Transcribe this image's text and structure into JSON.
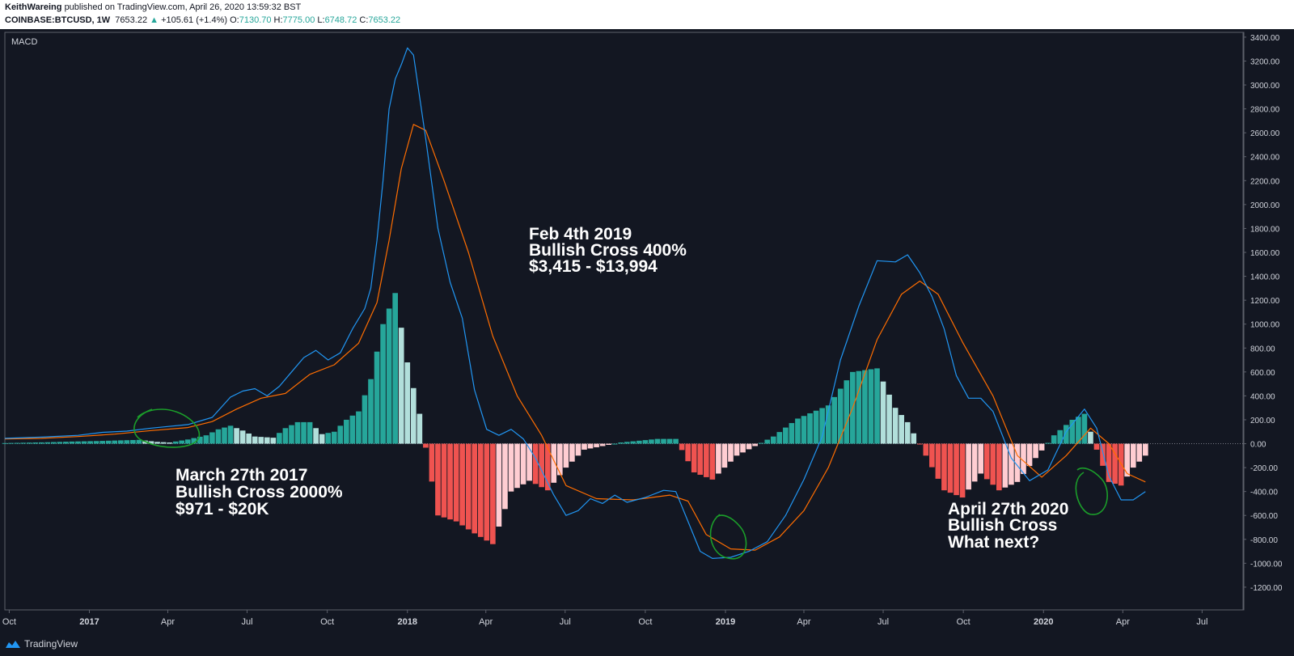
{
  "header": {
    "author": "KeithWareing",
    "published": "published on TradingView.com, April 26, 2020 13:59:32 BST",
    "symbol": "COINBASE:BTCUSD, 1W",
    "last": "7653.22",
    "change_arrow": "▲",
    "change": "+105.61 (+1.4%)",
    "o_label": "O:",
    "o_value": "7130.70",
    "h_label": "H:",
    "h_value": "7775.00",
    "l_label": "L:",
    "l_value": "6748.72",
    "c_label": "C:",
    "c_value": "7653.22"
  },
  "footer": {
    "brand": "TradingView",
    "logo_icon": "tradingview-logo-icon"
  },
  "colors": {
    "background": "#131722",
    "macd_line": "#2196f3",
    "signal_line": "#ff6d00",
    "hist_pos_strong": "#26a69a",
    "hist_pos_weak": "#b2dfdb",
    "hist_neg_strong": "#ef5350",
    "hist_neg_weak": "#ffcdd2",
    "annotation_text": "#ffffff",
    "circle_marks": "#1b9e2a"
  },
  "chart_data": {
    "type": "line",
    "indicator_label": "MACD",
    "y_ticks": [
      3400,
      3200,
      3000,
      2800,
      2600,
      2400,
      2200,
      2000,
      1800,
      1600,
      1400,
      1200,
      1000,
      800,
      600,
      400,
      200,
      0,
      -200,
      -400,
      -600,
      -800,
      -1000,
      -1200
    ],
    "y_tick_labels": [
      "3400.00",
      "3200.00",
      "3000.00",
      "2800.00",
      "2600.00",
      "2400.00",
      "2200.00",
      "2000.00",
      "1800.00",
      "1600.00",
      "1400.00",
      "1200.00",
      "1000.00",
      "800.00",
      "600.00",
      "400.00",
      "200.00",
      "0.00",
      "-200.00",
      "-400.00",
      "-600.00",
      "-800.00",
      "-1000.00",
      "-1200.00"
    ],
    "ylim": [
      -1390,
      3440
    ],
    "x_axis": {
      "start": "2016-09-26",
      "end": "2020-08-17",
      "ticks": [
        {
          "date": "2016-10-01",
          "label": "Oct",
          "bold": false
        },
        {
          "date": "2017-01-01",
          "label": "2017",
          "bold": true
        },
        {
          "date": "2017-04-01",
          "label": "Apr",
          "bold": false
        },
        {
          "date": "2017-07-01",
          "label": "Jul",
          "bold": false
        },
        {
          "date": "2017-10-01",
          "label": "Oct",
          "bold": false
        },
        {
          "date": "2018-01-01",
          "label": "2018",
          "bold": true
        },
        {
          "date": "2018-04-01",
          "label": "Apr",
          "bold": false
        },
        {
          "date": "2018-07-01",
          "label": "Jul",
          "bold": false
        },
        {
          "date": "2018-10-01",
          "label": "Oct",
          "bold": false
        },
        {
          "date": "2019-01-01",
          "label": "2019",
          "bold": true
        },
        {
          "date": "2019-04-01",
          "label": "Apr",
          "bold": false
        },
        {
          "date": "2019-07-01",
          "label": "Jul",
          "bold": false
        },
        {
          "date": "2019-10-01",
          "label": "Oct",
          "bold": false
        },
        {
          "date": "2020-01-01",
          "label": "2020",
          "bold": true
        },
        {
          "date": "2020-04-01",
          "label": "Apr",
          "bold": false
        },
        {
          "date": "2020-07-01",
          "label": "Jul",
          "bold": false
        }
      ]
    },
    "series": [
      {
        "name": "MACD",
        "points": [
          [
            "2016-09-26",
            45
          ],
          [
            "2016-11-07",
            55
          ],
          [
            "2016-12-19",
            70
          ],
          [
            "2017-01-16",
            95
          ],
          [
            "2017-02-13",
            105
          ],
          [
            "2017-03-13",
            130
          ],
          [
            "2017-03-27",
            140
          ],
          [
            "2017-04-24",
            160
          ],
          [
            "2017-05-22",
            220
          ],
          [
            "2017-06-12",
            390
          ],
          [
            "2017-06-26",
            440
          ],
          [
            "2017-07-10",
            460
          ],
          [
            "2017-07-24",
            400
          ],
          [
            "2017-08-07",
            480
          ],
          [
            "2017-08-21",
            600
          ],
          [
            "2017-09-04",
            720
          ],
          [
            "2017-09-18",
            780
          ],
          [
            "2017-10-02",
            700
          ],
          [
            "2017-10-16",
            760
          ],
          [
            "2017-10-30",
            960
          ],
          [
            "2017-11-13",
            1130
          ],
          [
            "2017-11-20",
            1300
          ],
          [
            "2017-11-27",
            1700
          ],
          [
            "2017-12-04",
            2200
          ],
          [
            "2017-12-11",
            2800
          ],
          [
            "2017-12-18",
            3050
          ],
          [
            "2017-12-25",
            3170
          ],
          [
            "2018-01-01",
            3310
          ],
          [
            "2018-01-08",
            3250
          ],
          [
            "2018-01-22",
            2550
          ],
          [
            "2018-02-05",
            1800
          ],
          [
            "2018-02-19",
            1350
          ],
          [
            "2018-03-05",
            1050
          ],
          [
            "2018-03-19",
            450
          ],
          [
            "2018-04-02",
            120
          ],
          [
            "2018-04-16",
            70
          ],
          [
            "2018-04-30",
            120
          ],
          [
            "2018-05-14",
            40
          ],
          [
            "2018-05-28",
            -120
          ],
          [
            "2018-06-18",
            -430
          ],
          [
            "2018-07-02",
            -600
          ],
          [
            "2018-07-16",
            -560
          ],
          [
            "2018-07-30",
            -460
          ],
          [
            "2018-08-13",
            -500
          ],
          [
            "2018-08-27",
            -430
          ],
          [
            "2018-09-10",
            -490
          ],
          [
            "2018-10-01",
            -450
          ],
          [
            "2018-10-22",
            -390
          ],
          [
            "2018-11-05",
            -400
          ],
          [
            "2018-11-19",
            -650
          ],
          [
            "2018-12-03",
            -900
          ],
          [
            "2018-12-17",
            -960
          ],
          [
            "2019-01-07",
            -950
          ],
          [
            "2019-01-28",
            -900
          ],
          [
            "2019-02-18",
            -820
          ],
          [
            "2019-03-11",
            -600
          ],
          [
            "2019-04-01",
            -300
          ],
          [
            "2019-04-22",
            60
          ],
          [
            "2019-05-13",
            700
          ],
          [
            "2019-06-03",
            1150
          ],
          [
            "2019-06-24",
            1530
          ],
          [
            "2019-07-15",
            1520
          ],
          [
            "2019-07-29",
            1580
          ],
          [
            "2019-08-12",
            1430
          ],
          [
            "2019-08-26",
            1230
          ],
          [
            "2019-09-09",
            960
          ],
          [
            "2019-09-23",
            570
          ],
          [
            "2019-10-07",
            380
          ],
          [
            "2019-10-21",
            380
          ],
          [
            "2019-11-04",
            270
          ],
          [
            "2019-11-25",
            -120
          ],
          [
            "2019-12-16",
            -310
          ],
          [
            "2020-01-06",
            -220
          ],
          [
            "2020-01-27",
            100
          ],
          [
            "2020-02-17",
            290
          ],
          [
            "2020-03-02",
            130
          ],
          [
            "2020-03-16",
            -270
          ],
          [
            "2020-03-30",
            -470
          ],
          [
            "2020-04-13",
            -470
          ],
          [
            "2020-04-27",
            -400
          ]
        ]
      },
      {
        "name": "Signal",
        "points": [
          [
            "2016-09-26",
            40
          ],
          [
            "2016-11-07",
            45
          ],
          [
            "2016-12-19",
            60
          ],
          [
            "2017-01-30",
            80
          ],
          [
            "2017-03-13",
            110
          ],
          [
            "2017-04-24",
            135
          ],
          [
            "2017-05-22",
            185
          ],
          [
            "2017-06-19",
            290
          ],
          [
            "2017-07-17",
            380
          ],
          [
            "2017-08-14",
            420
          ],
          [
            "2017-09-11",
            580
          ],
          [
            "2017-10-09",
            660
          ],
          [
            "2017-11-06",
            840
          ],
          [
            "2017-11-27",
            1180
          ],
          [
            "2017-12-11",
            1700
          ],
          [
            "2017-12-25",
            2300
          ],
          [
            "2018-01-08",
            2670
          ],
          [
            "2018-01-22",
            2620
          ],
          [
            "2018-02-12",
            2200
          ],
          [
            "2018-03-12",
            1600
          ],
          [
            "2018-04-09",
            900
          ],
          [
            "2018-05-07",
            400
          ],
          [
            "2018-06-04",
            70
          ],
          [
            "2018-07-02",
            -350
          ],
          [
            "2018-08-06",
            -460
          ],
          [
            "2018-09-17",
            -470
          ],
          [
            "2018-10-29",
            -430
          ],
          [
            "2018-11-19",
            -480
          ],
          [
            "2018-12-10",
            -760
          ],
          [
            "2019-01-07",
            -880
          ],
          [
            "2019-02-04",
            -890
          ],
          [
            "2019-03-04",
            -780
          ],
          [
            "2019-04-01",
            -560
          ],
          [
            "2019-04-29",
            -200
          ],
          [
            "2019-05-27",
            300
          ],
          [
            "2019-06-24",
            870
          ],
          [
            "2019-07-22",
            1250
          ],
          [
            "2019-08-12",
            1360
          ],
          [
            "2019-09-02",
            1250
          ],
          [
            "2019-09-30",
            850
          ],
          [
            "2019-11-04",
            400
          ],
          [
            "2019-12-02",
            -100
          ],
          [
            "2019-12-30",
            -280
          ],
          [
            "2020-01-27",
            -100
          ],
          [
            "2020-02-24",
            130
          ],
          [
            "2020-03-16",
            0
          ],
          [
            "2020-04-06",
            -250
          ],
          [
            "2020-04-27",
            -320
          ]
        ]
      },
      {
        "name": "Histogram",
        "points": [
          [
            "2016-09-26",
            5
          ],
          [
            "2016-10-17",
            8
          ],
          [
            "2016-11-14",
            12
          ],
          [
            "2016-12-12",
            18
          ],
          [
            "2017-01-09",
            22
          ],
          [
            "2017-02-06",
            28
          ],
          [
            "2017-02-27",
            32
          ],
          [
            "2017-03-20",
            15
          ],
          [
            "2017-04-03",
            10
          ],
          [
            "2017-04-24",
            35
          ],
          [
            "2017-05-15",
            70
          ],
          [
            "2017-05-29",
            120
          ],
          [
            "2017-06-12",
            150
          ],
          [
            "2017-06-26",
            110
          ],
          [
            "2017-07-10",
            60
          ],
          [
            "2017-07-31",
            50
          ],
          [
            "2017-08-14",
            130
          ],
          [
            "2017-08-28",
            180
          ],
          [
            "2017-09-11",
            180
          ],
          [
            "2017-09-25",
            80
          ],
          [
            "2017-10-09",
            100
          ],
          [
            "2017-10-23",
            200
          ],
          [
            "2017-11-06",
            270
          ],
          [
            "2017-11-20",
            540
          ],
          [
            "2017-12-04",
            1000
          ],
          [
            "2017-12-18",
            1260
          ],
          [
            "2018-01-01",
            680
          ],
          [
            "2018-01-15",
            250
          ],
          [
            "2018-02-05",
            -600
          ],
          [
            "2018-02-26",
            -650
          ],
          [
            "2018-03-19",
            -750
          ],
          [
            "2018-04-09",
            -840
          ],
          [
            "2018-04-30",
            -400
          ],
          [
            "2018-05-21",
            -310
          ],
          [
            "2018-06-11",
            -390
          ],
          [
            "2018-07-02",
            -200
          ],
          [
            "2018-07-23",
            -50
          ],
          [
            "2018-08-13",
            -20
          ],
          [
            "2018-09-03",
            10
          ],
          [
            "2018-09-24",
            25
          ],
          [
            "2018-10-15",
            40
          ],
          [
            "2018-11-05",
            40
          ],
          [
            "2018-11-26",
            -240
          ],
          [
            "2018-12-17",
            -300
          ],
          [
            "2019-01-14",
            -100
          ],
          [
            "2019-02-04",
            -20
          ],
          [
            "2019-02-25",
            60
          ],
          [
            "2019-03-25",
            210
          ],
          [
            "2019-04-29",
            320
          ],
          [
            "2019-05-27",
            600
          ],
          [
            "2019-06-24",
            630
          ],
          [
            "2019-07-15",
            300
          ],
          [
            "2019-07-29",
            180
          ],
          [
            "2019-08-19",
            -100
          ],
          [
            "2019-09-09",
            -390
          ],
          [
            "2019-09-30",
            -450
          ],
          [
            "2019-10-21",
            -250
          ],
          [
            "2019-11-11",
            -390
          ],
          [
            "2019-12-02",
            -320
          ],
          [
            "2019-12-23",
            -120
          ],
          [
            "2020-01-13",
            70
          ],
          [
            "2020-02-03",
            200
          ],
          [
            "2020-02-17",
            250
          ],
          [
            "2020-03-02",
            -50
          ],
          [
            "2020-03-16",
            -320
          ],
          [
            "2020-03-30",
            -350
          ],
          [
            "2020-04-13",
            -200
          ],
          [
            "2020-04-27",
            -100
          ]
        ]
      }
    ],
    "annotations": [
      {
        "lines": [
          "Feb 4th 2019",
          "Bullish Cross 400%",
          "$3,415 - $13,994"
        ]
      },
      {
        "lines": [
          "March 27th 2017",
          "Bullish Cross 2000%",
          "$971 - $20K"
        ]
      },
      {
        "lines": [
          "April 27th 2020",
          "Bullish Cross",
          "What next?"
        ]
      }
    ]
  }
}
